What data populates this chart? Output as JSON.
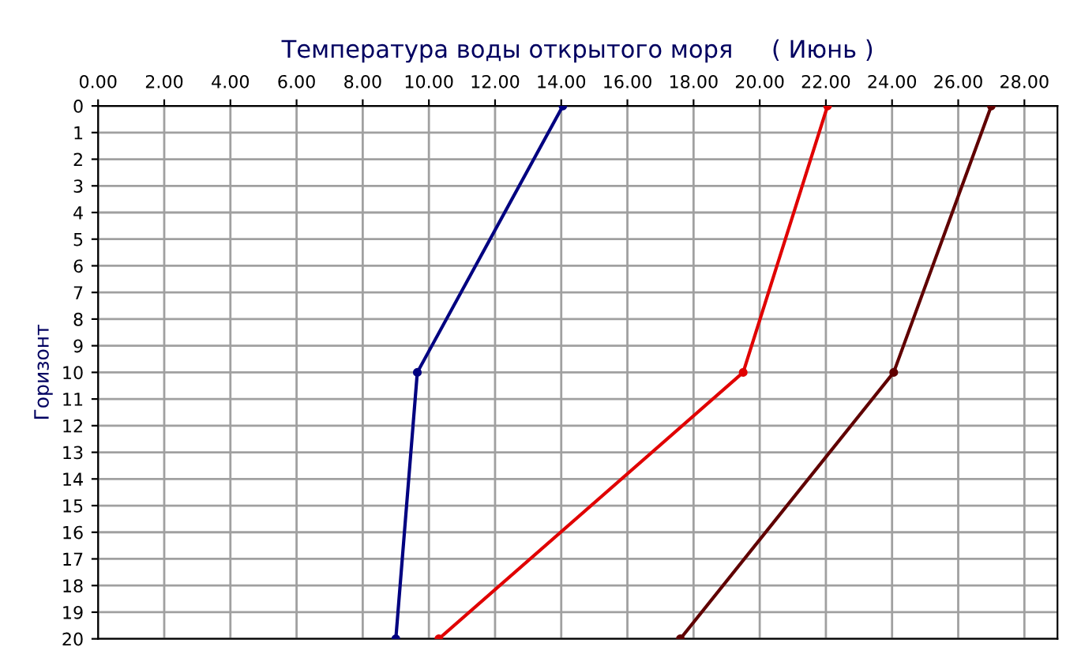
{
  "chart_data": {
    "type": "line",
    "title": "Температура воды открытого моря     ( Июнь )",
    "ylabel": "Горизонт",
    "series": [
      {
        "color": "#000080",
        "x": [
          14.05,
          9.65,
          9.0
        ],
        "values": [
          0,
          10,
          20
        ]
      },
      {
        "color": "#e00000",
        "x": [
          22.05,
          19.5,
          10.3
        ],
        "values": [
          0,
          10,
          20
        ]
      },
      {
        "color": "#600000",
        "x": [
          27.0,
          24.05,
          17.6
        ],
        "values": [
          0,
          10,
          20
        ]
      }
    ],
    "xlim": [
      0,
      29
    ],
    "xticks": [
      {
        "value": 0,
        "label": "0.00"
      },
      {
        "value": 2,
        "label": "2.00"
      },
      {
        "value": 4,
        "label": "4.00"
      },
      {
        "value": 6,
        "label": "6.00"
      },
      {
        "value": 8,
        "label": "8.00"
      },
      {
        "value": 10,
        "label": "10.00"
      },
      {
        "value": 12,
        "label": "12.00"
      },
      {
        "value": 14,
        "label": "14.00"
      },
      {
        "value": 16,
        "label": "16.00"
      },
      {
        "value": 18,
        "label": "18.00"
      },
      {
        "value": 20,
        "label": "20.00"
      },
      {
        "value": 22,
        "label": "22.00"
      },
      {
        "value": 24,
        "label": "24.00"
      },
      {
        "value": 26,
        "label": "26.00"
      },
      {
        "value": 28,
        "label": "28.00"
      }
    ],
    "ylim": [
      20,
      0
    ],
    "yticks": [
      0,
      1,
      2,
      3,
      4,
      5,
      6,
      7,
      8,
      9,
      10,
      11,
      12,
      13,
      14,
      15,
      16,
      17,
      18,
      19,
      20
    ],
    "grid": true,
    "marker": "circle",
    "line_style": "solid"
  }
}
